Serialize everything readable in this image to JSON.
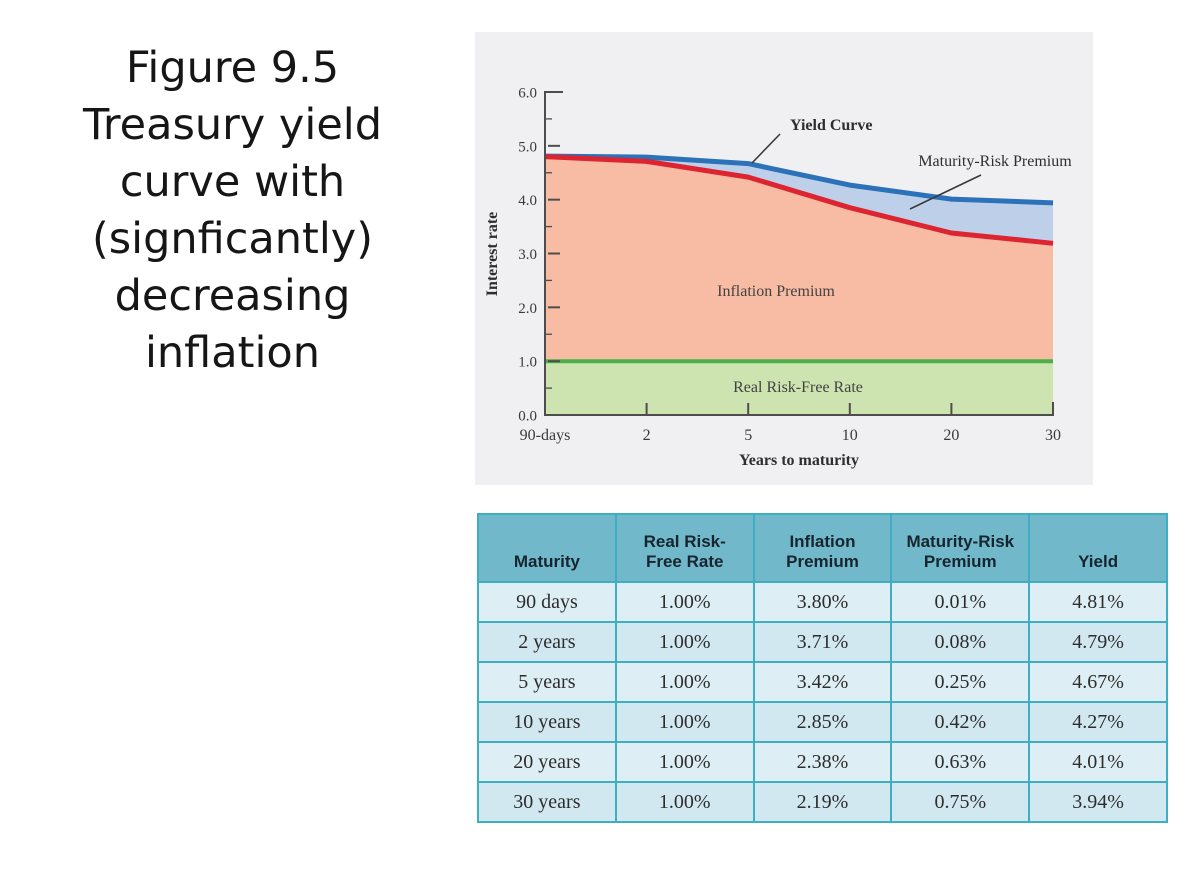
{
  "title": {
    "lines": [
      "Figure 9.5",
      "Treasury yield",
      "curve with",
      "(signficantly)",
      "decreasing",
      "inflation"
    ]
  },
  "chart_data": {
    "type": "area",
    "title": "",
    "xlabel": "Years to maturity",
    "ylabel": "Interest rate",
    "x_categories": [
      "90-days",
      "2",
      "5",
      "10",
      "20",
      "30"
    ],
    "ylim": [
      0,
      6
    ],
    "ytick_labels": [
      "0.0",
      "1.0",
      "2.0",
      "3.0",
      "4.0",
      "5.0",
      "6.0"
    ],
    "grid": false,
    "panel_bg": "#f0eff1",
    "axis_color": "#4d4d4d",
    "text_color": "#3c3c3c",
    "series": [
      {
        "name": "Yield Curve",
        "values": [
          4.81,
          4.79,
          4.67,
          4.27,
          4.01,
          3.94
        ],
        "line_color": "#2b72b8"
      },
      {
        "name": "Real Risk-Free Rate + Inflation Premium",
        "values": [
          4.8,
          4.71,
          4.42,
          3.85,
          3.38,
          3.19
        ],
        "line_color": "#dc2530"
      },
      {
        "name": "Real Risk-Free Rate",
        "values": [
          1.0,
          1.0,
          1.0,
          1.0,
          1.0,
          1.0
        ],
        "line_color": "#48b047"
      }
    ],
    "bands": [
      {
        "label": "Maturity-Risk Premium",
        "upper": 0,
        "lower": 1,
        "fill": "#bed0e9"
      },
      {
        "label": "Inflation Premium",
        "upper": 1,
        "lower": 2,
        "fill": "#f8bca5"
      },
      {
        "label": "Real Risk-Free Rate",
        "upper": 2,
        "lower": "baseline",
        "fill": "#cde4b0"
      }
    ],
    "annotations": [
      {
        "id": "yield-curve",
        "text": "Yield Curve"
      },
      {
        "id": "maturity-risk-premium",
        "text": "Maturity-Risk Premium"
      }
    ],
    "area_labels": [
      {
        "id": "inflation-premium",
        "text": "Inflation Premium"
      },
      {
        "id": "real-risk-free-rate",
        "text": "Real Risk-Free Rate"
      }
    ]
  },
  "table": {
    "headers": [
      "Maturity",
      "Real Risk-\nFree Rate",
      "Inflation\nPremium",
      "Maturity-Risk\nPremium",
      "Yield"
    ],
    "rows": [
      [
        "90 days",
        "1.00%",
        "3.80%",
        "0.01%",
        "4.81%"
      ],
      [
        "2 years",
        "1.00%",
        "3.71%",
        "0.08%",
        "4.79%"
      ],
      [
        "5 years",
        "1.00%",
        "3.42%",
        "0.25%",
        "4.67%"
      ],
      [
        "10 years",
        "1.00%",
        "2.85%",
        "0.42%",
        "4.27%"
      ],
      [
        "20 years",
        "1.00%",
        "2.38%",
        "0.63%",
        "4.01%"
      ],
      [
        "30 years",
        "1.00%",
        "2.19%",
        "0.75%",
        "3.94%"
      ]
    ],
    "colors": {
      "header_bg": "#72b8cb",
      "header_text": "#17262e",
      "border": "#3fadc2",
      "row_light": "#ddeef4",
      "row_dark": "#d2e8f0",
      "cell_text": "#2d2d2d"
    }
  }
}
